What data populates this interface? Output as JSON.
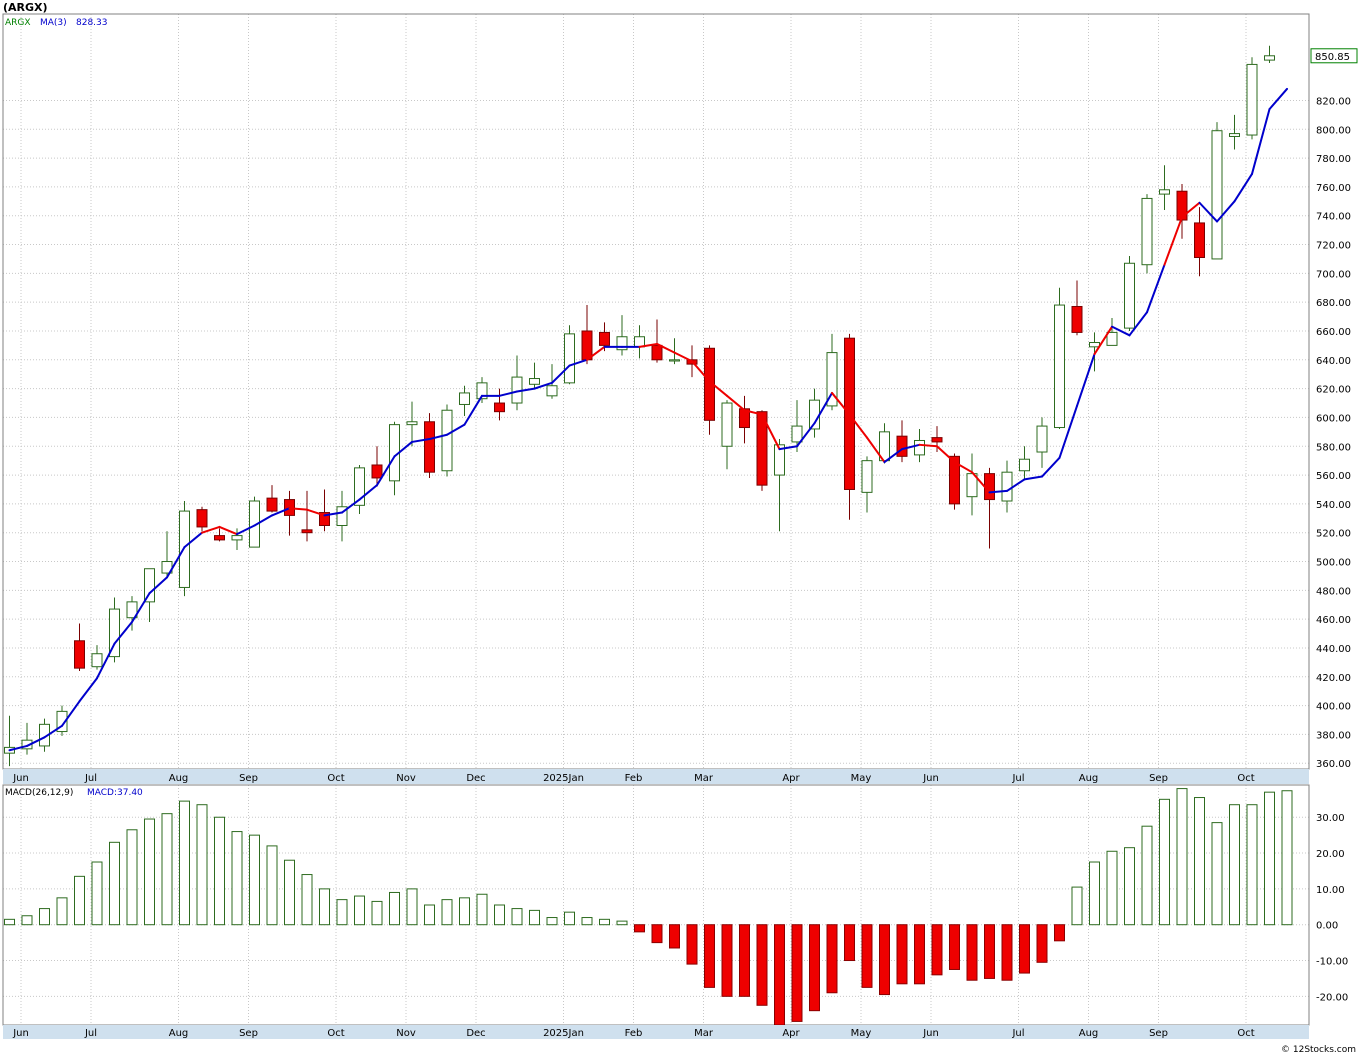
{
  "page": {
    "title": "(ARGX)",
    "footer": "© 12Stocks.com"
  },
  "chart_data": [
    {
      "type": "candlestick",
      "title": "(ARGX)",
      "legend": [
        {
          "label": "ARGX",
          "color": "#008000"
        },
        {
          "label": "MA(3)",
          "color": "#0000cc"
        },
        {
          "label": "828.33",
          "color": "#0000cc"
        }
      ],
      "last_price_label": "850.85",
      "y_ticks": [
        "360.00",
        "380.00",
        "400.00",
        "420.00",
        "440.00",
        "460.00",
        "480.00",
        "500.00",
        "520.00",
        "540.00",
        "560.00",
        "580.00",
        "600.00",
        "620.00",
        "640.00",
        "660.00",
        "680.00",
        "700.00",
        "720.00",
        "740.00",
        "760.00",
        "780.00",
        "800.00",
        "820.00"
      ],
      "ylim": [
        356,
        880
      ],
      "x_labels": [
        {
          "label": "Jun",
          "week": 1
        },
        {
          "label": "Jul",
          "week": 5
        },
        {
          "label": "Aug",
          "week": 10
        },
        {
          "label": "Sep",
          "week": 14
        },
        {
          "label": "Oct",
          "week": 19
        },
        {
          "label": "Nov",
          "week": 23
        },
        {
          "label": "Dec",
          "week": 27
        },
        {
          "label": "2025Jan",
          "week": 32
        },
        {
          "label": "Feb",
          "week": 36
        },
        {
          "label": "Mar",
          "week": 40
        },
        {
          "label": "Apr",
          "week": 45
        },
        {
          "label": "May",
          "week": 49
        },
        {
          "label": "Jun",
          "week": 53
        },
        {
          "label": "Jul",
          "week": 58
        },
        {
          "label": "Aug",
          "week": 62
        },
        {
          "label": "Sep",
          "week": 66
        },
        {
          "label": "Oct",
          "week": 71
        }
      ],
      "candles": [
        [
          367,
          371,
          358,
          393
        ],
        [
          370,
          376,
          366,
          388
        ],
        [
          372,
          387,
          368,
          391
        ],
        [
          382,
          396,
          379,
          400
        ],
        [
          445,
          426,
          424,
          457
        ],
        [
          427,
          436,
          425,
          442
        ],
        [
          434,
          467,
          430,
          475
        ],
        [
          461,
          472,
          452,
          476
        ],
        [
          472,
          495,
          458,
          495
        ],
        [
          492,
          500,
          490,
          521
        ],
        [
          482,
          535,
          476,
          542
        ],
        [
          536,
          524,
          521,
          538
        ],
        [
          518,
          515,
          514,
          523
        ],
        [
          515,
          518,
          508,
          523
        ],
        [
          510,
          542,
          510,
          545
        ],
        [
          544,
          535,
          534,
          553
        ],
        [
          543,
          532,
          518,
          549
        ],
        [
          522,
          520,
          514,
          549
        ],
        [
          534,
          525,
          521,
          550
        ],
        [
          525,
          538,
          514,
          549
        ],
        [
          539,
          565,
          533,
          567
        ],
        [
          567,
          558,
          552,
          580
        ],
        [
          556,
          595,
          546,
          597
        ],
        [
          595,
          597,
          580,
          611
        ],
        [
          597,
          562,
          558,
          603
        ],
        [
          563,
          605,
          559,
          609
        ],
        [
          609,
          617,
          601,
          622
        ],
        [
          613,
          624,
          610,
          628
        ],
        [
          610,
          604,
          598,
          620
        ],
        [
          610,
          628,
          605,
          643
        ],
        [
          623,
          627,
          620,
          638
        ],
        [
          615,
          622,
          613,
          637
        ],
        [
          624,
          658,
          623,
          664
        ],
        [
          660,
          640,
          637,
          678
        ],
        [
          659,
          650,
          646,
          666
        ],
        [
          647,
          656,
          643,
          671
        ],
        [
          649,
          656,
          641,
          664
        ],
        [
          650,
          640,
          638,
          668
        ],
        [
          640,
          640,
          637,
          655
        ],
        [
          640,
          637,
          628,
          650
        ],
        [
          648,
          598,
          588,
          650
        ],
        [
          580,
          610,
          564,
          612
        ],
        [
          606,
          593,
          582,
          615
        ],
        [
          604,
          553,
          549,
          605
        ],
        [
          560,
          581,
          521,
          585
        ],
        [
          583,
          594,
          576,
          612
        ],
        [
          592,
          612,
          586,
          620
        ],
        [
          608,
          645,
          605,
          658
        ],
        [
          655,
          550,
          529,
          658
        ],
        [
          548,
          570,
          534,
          573
        ],
        [
          570,
          590,
          568,
          596
        ],
        [
          587,
          573,
          569,
          598
        ],
        [
          574,
          584,
          569,
          592
        ],
        [
          586,
          583,
          576,
          594
        ],
        [
          573,
          540,
          536,
          575
        ],
        [
          545,
          561,
          532,
          575
        ],
        [
          561,
          543,
          509,
          565
        ],
        [
          542,
          562,
          534,
          570
        ],
        [
          563,
          571,
          557,
          580
        ],
        [
          576,
          594,
          565,
          600
        ],
        [
          593,
          678,
          592,
          690
        ],
        [
          677,
          659,
          657,
          695
        ],
        [
          649,
          652,
          632,
          659
        ],
        [
          650,
          659,
          650,
          669
        ],
        [
          662,
          707,
          660,
          712
        ],
        [
          706,
          752,
          700,
          755
        ],
        [
          755,
          758,
          744,
          775
        ],
        [
          757,
          737,
          724,
          762
        ],
        [
          735,
          711,
          698,
          746
        ],
        [
          710,
          799,
          710,
          805
        ],
        [
          795,
          797,
          786,
          810
        ],
        [
          796,
          845,
          793,
          850
        ],
        [
          848,
          851,
          846,
          858
        ]
      ],
      "ma": [
        [
          0,
          369
        ],
        [
          1,
          372
        ],
        [
          2,
          378
        ],
        [
          3,
          386
        ],
        [
          4,
          403
        ],
        [
          5,
          419
        ],
        [
          6,
          443
        ],
        [
          7,
          458
        ],
        [
          8,
          478
        ],
        [
          9,
          489
        ],
        [
          10,
          510
        ],
        [
          11,
          520
        ],
        [
          12,
          524
        ],
        [
          13,
          519
        ],
        [
          14,
          525
        ],
        [
          15,
          532
        ],
        [
          16,
          537
        ],
        [
          17,
          536
        ],
        [
          18,
          532
        ],
        [
          19,
          534
        ],
        [
          20,
          543
        ],
        [
          21,
          553
        ],
        [
          22,
          573
        ],
        [
          23,
          583
        ],
        [
          24,
          585
        ],
        [
          25,
          588
        ],
        [
          26,
          595
        ],
        [
          27,
          615
        ],
        [
          28,
          615
        ],
        [
          29,
          618
        ],
        [
          30,
          620
        ],
        [
          31,
          624
        ],
        [
          32,
          636
        ],
        [
          33,
          640
        ],
        [
          34,
          649
        ],
        [
          35,
          649
        ],
        [
          36,
          649
        ],
        [
          37,
          651
        ],
        [
          38,
          645
        ],
        [
          39,
          639
        ],
        [
          40,
          625
        ],
        [
          41,
          615
        ],
        [
          42,
          605
        ],
        [
          43,
          602
        ],
        [
          44,
          578
        ],
        [
          45,
          580
        ],
        [
          46,
          596
        ],
        [
          47,
          617
        ],
        [
          48,
          602
        ],
        [
          49,
          586
        ],
        [
          50,
          569
        ],
        [
          51,
          578
        ],
        [
          52,
          581
        ],
        [
          53,
          580
        ],
        [
          54,
          569
        ],
        [
          55,
          562
        ],
        [
          56,
          548
        ],
        [
          57,
          549
        ],
        [
          58,
          557
        ],
        [
          59,
          559
        ],
        [
          60,
          572
        ],
        [
          61,
          608
        ],
        [
          62,
          644
        ],
        [
          63,
          663
        ],
        [
          64,
          657
        ],
        [
          65,
          673
        ],
        [
          66,
          706
        ],
        [
          67,
          739
        ],
        [
          68,
          749
        ],
        [
          69,
          736
        ],
        [
          70,
          750
        ],
        [
          71,
          769
        ],
        [
          72,
          814
        ],
        [
          73,
          828
        ]
      ],
      "ma_red_segments": [
        [
          11,
          12
        ],
        [
          12,
          13
        ],
        [
          16,
          17
        ],
        [
          17,
          18
        ],
        [
          33,
          34
        ],
        [
          36,
          37
        ],
        [
          37,
          38
        ],
        [
          38,
          39
        ],
        [
          39,
          40
        ],
        [
          40,
          41
        ],
        [
          41,
          42
        ],
        [
          42,
          43
        ],
        [
          43,
          44
        ],
        [
          47,
          48
        ],
        [
          48,
          49
        ],
        [
          49,
          50
        ],
        [
          52,
          53
        ],
        [
          53,
          54
        ],
        [
          54,
          55
        ],
        [
          55,
          56
        ],
        [
          62,
          63
        ],
        [
          66,
          67
        ],
        [
          67,
          68
        ]
      ]
    },
    {
      "type": "bar",
      "title": "MACD(26,12,9)",
      "legend": [
        {
          "label": "MACD(26,12,9)",
          "color": "#000000"
        },
        {
          "label": "MACD:37.40",
          "color": "#0000cc"
        }
      ],
      "y_ticks": [
        "-20.00",
        "-10.00",
        "0.00",
        "10.00",
        "20.00",
        "30.00"
      ],
      "ylim": [
        -28,
        39
      ],
      "values": [
        1.5,
        2.5,
        4.5,
        7.5,
        13.5,
        17.5,
        23,
        26.5,
        29.5,
        31,
        34.5,
        33.5,
        30,
        26,
        25,
        22,
        18,
        14,
        10,
        7,
        8,
        6.5,
        9,
        10,
        5.5,
        7,
        7.5,
        8.5,
        5.5,
        4.5,
        4,
        2,
        3.5,
        2,
        1.5,
        1,
        -2,
        -5,
        -6.5,
        -11,
        -17.5,
        -20,
        -20,
        -22.5,
        -28,
        -27,
        -24,
        -19,
        -10,
        -17.5,
        -19.5,
        -16.5,
        -16.5,
        -14,
        -12.5,
        -15.5,
        -15,
        -15.5,
        -13.5,
        -10.5,
        -4.5,
        10.5,
        17.5,
        20.5,
        21.5,
        27.5,
        35,
        38,
        35.5,
        28.5,
        33.5,
        33.5,
        37,
        37.4
      ]
    }
  ]
}
